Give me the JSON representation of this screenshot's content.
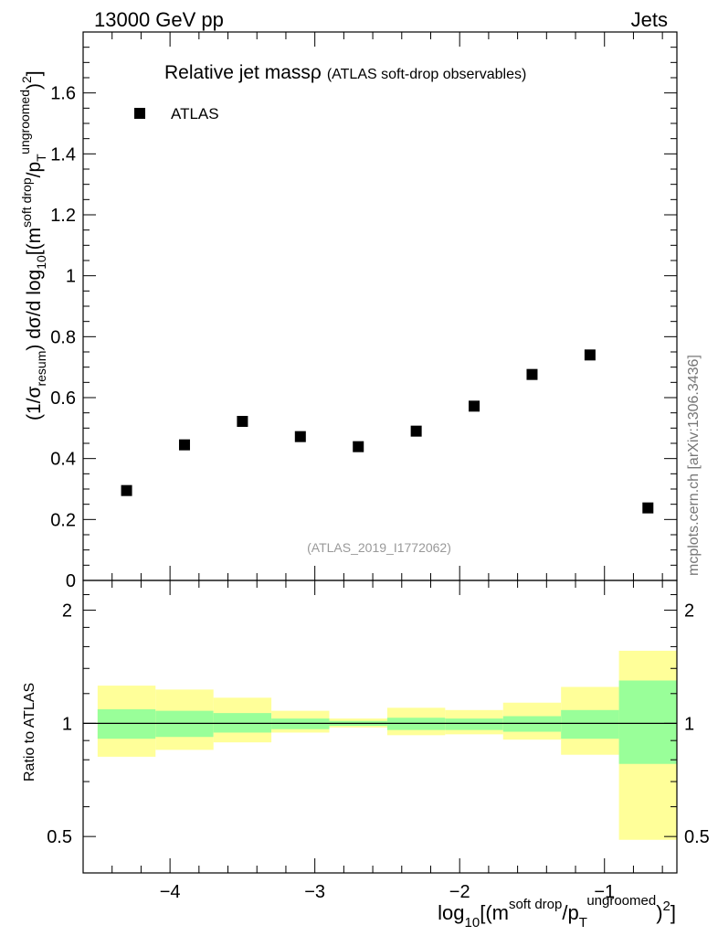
{
  "header": {
    "left": "13000 GeV pp",
    "right": "Jets"
  },
  "side_label": "mcplots.cern.ch [arXiv:1306.3436]",
  "watermark": "(ATLAS_2019_I1772062)",
  "chart_data": [
    {
      "type": "scatter",
      "title": "Relative jet massρ",
      "subtitle": "(ATLAS soft-drop observables)",
      "legend": {
        "placement": "top-left",
        "entries": [
          "ATLAS"
        ]
      },
      "xlabel": {
        "prefix": "log",
        "sub": "10",
        "body": "[(m",
        "sup1": "soft drop",
        "mid": "/p",
        "sub2": "T",
        "sup2": "ungroomed",
        "tail": ")",
        "sup3": "2",
        "end": "]"
      },
      "ylabel": {
        "a": "(1/σ",
        "a_sub": "resum",
        "b": ") dσ/d log",
        "b_sub": "10",
        "c": "[(m",
        "c_sup": "soft drop",
        "d": "/p",
        "d_sub": "T",
        "d_sup": "ungroomed",
        "e": ")",
        "e_sup": "2",
        "f": "]"
      },
      "xlim": [
        -4.6,
        -0.5
      ],
      "ylim": [
        0,
        1.8
      ],
      "yticks": [
        0,
        0.2,
        0.4,
        0.6,
        0.8,
        1,
        1.2,
        1.4,
        1.6
      ],
      "ytick_labels": [
        "0",
        "0.2",
        "0.4",
        "0.6",
        "0.8",
        "1",
        "1.2",
        "1.4",
        "1.6"
      ],
      "series": [
        {
          "name": "ATLAS",
          "color": "#000000",
          "x": [
            -4.3,
            -3.9,
            -3.5,
            -3.1,
            -2.7,
            -2.3,
            -1.9,
            -1.5,
            -1.1,
            -0.7
          ],
          "y": [
            0.295,
            0.445,
            0.522,
            0.472,
            0.439,
            0.49,
            0.572,
            0.676,
            0.74,
            0.238
          ]
        }
      ]
    },
    {
      "type": "area",
      "ylabel": "Ratio to ATLAS",
      "log_scale_y": true,
      "xlim": [
        -4.6,
        -0.5
      ],
      "ylim": [
        0.4,
        2.4
      ],
      "yticks": [
        0.5,
        1,
        2
      ],
      "ytick_labels": [
        "0.5",
        "1",
        "2"
      ],
      "xticks": [
        -4,
        -3,
        -2,
        -1
      ],
      "xtick_labels": [
        "−4",
        "−3",
        "−2",
        "−1"
      ],
      "reference_line": 1,
      "bands": {
        "bin_edges": [
          -4.5,
          -4.1,
          -3.7,
          -3.3,
          -2.9,
          -2.5,
          -2.1,
          -1.7,
          -1.3,
          -0.9,
          -0.5
        ],
        "inner_color": "#99ff99",
        "outer_color": "#ffff99",
        "inner_low": [
          0.91,
          0.92,
          0.945,
          0.965,
          0.985,
          0.96,
          0.96,
          0.95,
          0.91,
          0.78
        ],
        "inner_high": [
          1.09,
          1.08,
          1.065,
          1.03,
          1.015,
          1.035,
          1.03,
          1.045,
          1.085,
          1.3
        ],
        "outer_low": [
          0.815,
          0.85,
          0.89,
          0.945,
          0.975,
          0.93,
          0.935,
          0.905,
          0.825,
          0.49
        ],
        "outer_high": [
          1.26,
          1.23,
          1.17,
          1.08,
          1.03,
          1.1,
          1.085,
          1.135,
          1.25,
          1.56
        ]
      }
    }
  ]
}
